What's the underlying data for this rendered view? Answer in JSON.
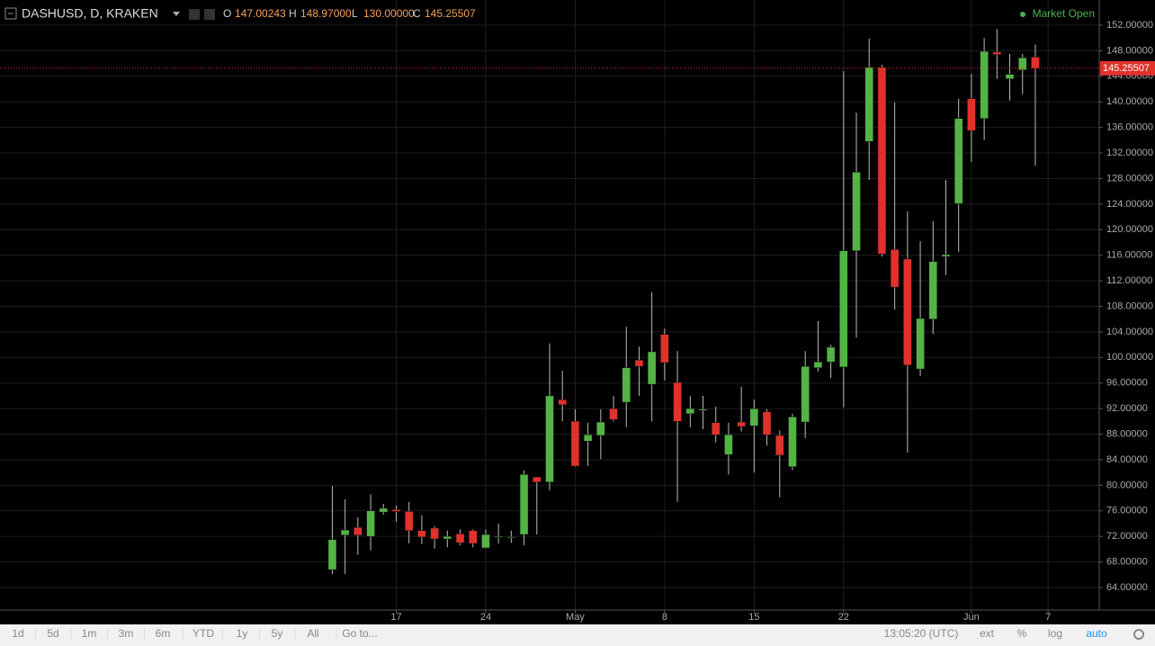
{
  "chart_data": {
    "type": "candlestick",
    "title": "DASHUSD, D, KRAKEN",
    "status": "Market Open",
    "legend": [
      {
        "label": "O",
        "value": "147.00243"
      },
      {
        "label": "H",
        "value": "148.97000"
      },
      {
        "label": "L",
        "value": "130.00000"
      },
      {
        "label": "C",
        "value": "145.25507"
      }
    ],
    "x": [
      "04-12",
      "04-13",
      "04-14",
      "04-15",
      "04-16",
      "04-17",
      "04-18",
      "04-19",
      "04-20",
      "04-21",
      "04-22",
      "04-23",
      "04-24",
      "04-25",
      "04-26",
      "04-27",
      "04-28",
      "04-29",
      "04-30",
      "05-01",
      "05-02",
      "05-03",
      "05-04",
      "05-05",
      "05-06",
      "05-07",
      "05-08",
      "05-09",
      "05-10",
      "05-11",
      "05-12",
      "05-13",
      "05-14",
      "05-15",
      "05-16",
      "05-17",
      "05-18",
      "05-19",
      "05-20",
      "05-21",
      "05-22",
      "05-23",
      "05-24",
      "05-25",
      "05-26",
      "05-27",
      "05-28",
      "05-29",
      "05-30",
      "05-31",
      "06-01",
      "06-02",
      "06-03",
      "06-04",
      "06-05",
      "06-06"
    ],
    "open": [
      66.8,
      72.2,
      73.4,
      72.0,
      75.8,
      76.2,
      75.9,
      72.9,
      73.3,
      71.6,
      72.4,
      72.9,
      70.2,
      71.9,
      71.8,
      72.3,
      81.3,
      80.5,
      93.4,
      90.0,
      86.9,
      87.8,
      92.0,
      93.0,
      99.6,
      95.8,
      103.6,
      96.1,
      91.2,
      91.7,
      89.8,
      84.8,
      89.9,
      89.3,
      91.5,
      87.8,
      82.9,
      89.9,
      98.4,
      99.3,
      98.5,
      116.7,
      133.8,
      145.4,
      116.9,
      115.4,
      98.2,
      106.0,
      115.8,
      124.1,
      140.5,
      137.4,
      147.8,
      143.6,
      145.0,
      147.00243
    ],
    "high": [
      79.9,
      77.8,
      75.0,
      78.6,
      77.1,
      76.8,
      77.4,
      75.3,
      73.6,
      72.9,
      73.1,
      73.1,
      73.1,
      74.0,
      72.9,
      82.3,
      81.3,
      102.2,
      97.9,
      91.9,
      89.8,
      91.9,
      94.0,
      104.8,
      101.7,
      110.2,
      104.5,
      101.0,
      94.0,
      94.0,
      92.3,
      89.8,
      95.4,
      93.4,
      91.9,
      88.6,
      91.2,
      101.0,
      105.7,
      102.0,
      144.8,
      138.3,
      149.9,
      145.8,
      139.9,
      122.9,
      118.2,
      121.3,
      127.8,
      140.5,
      144.4,
      150.0,
      151.4,
      147.5,
      147.5,
      148.97
    ],
    "low": [
      66.1,
      66.1,
      69.1,
      69.8,
      75.4,
      74.3,
      70.9,
      70.8,
      70.1,
      70.3,
      70.6,
      70.3,
      70.1,
      70.9,
      71.0,
      70.6,
      72.3,
      79.2,
      90.0,
      82.9,
      83.0,
      84.1,
      90.0,
      89.1,
      94.0,
      90.0,
      96.4,
      77.4,
      89.1,
      88.8,
      86.7,
      81.7,
      88.4,
      82.0,
      86.2,
      78.1,
      82.4,
      87.4,
      97.8,
      96.8,
      92.2,
      103.1,
      127.8,
      115.8,
      107.5,
      85.1,
      97.1,
      103.7,
      112.9,
      116.5,
      130.6,
      134.0,
      143.6,
      140.2,
      141.2,
      130
    ],
    "close": [
      71.5,
      73.0,
      72.2,
      76.0,
      76.4,
      75.9,
      72.9,
      71.9,
      71.6,
      72.0,
      71.0,
      70.9,
      72.3,
      72.0,
      71.9,
      81.7,
      80.5,
      94.0,
      92.6,
      83.0,
      87.9,
      89.9,
      90.3,
      98.4,
      98.6,
      100.9,
      99.2,
      90.0,
      92.0,
      91.9,
      87.9,
      87.9,
      89.2,
      92.0,
      87.9,
      84.7,
      90.7,
      98.6,
      99.3,
      101.6,
      116.7,
      129.0,
      145.4,
      116.2,
      111.0,
      98.8,
      106.1,
      115.0,
      116.1,
      137.4,
      135.5,
      147.9,
      147.4,
      144.3,
      146.9,
      145.25507
    ],
    "up_color": "#53b445",
    "down_color": "#e0312b",
    "xlim": [
      "03-17",
      "06-11"
    ],
    "xticks": [
      {
        "value": "04-17",
        "label": "17"
      },
      {
        "value": "04-24",
        "label": "24"
      },
      {
        "value": "05-01",
        "label": "May"
      },
      {
        "value": "05-08",
        "label": "8"
      },
      {
        "value": "05-15",
        "label": "15"
      },
      {
        "value": "05-22",
        "label": "22"
      },
      {
        "value": "06-01",
        "label": "Jun"
      },
      {
        "value": "06-07",
        "label": "7"
      }
    ],
    "ylim": [
      60.48,
      155.94
    ],
    "yticks": [
      {
        "value": 64,
        "label": "64.00000"
      },
      {
        "value": 68,
        "label": "68.00000"
      },
      {
        "value": 72,
        "label": "72.00000"
      },
      {
        "value": 76,
        "label": "76.00000"
      },
      {
        "value": 80,
        "label": "80.00000"
      },
      {
        "value": 84,
        "label": "84.00000"
      },
      {
        "value": 88,
        "label": "88.00000"
      },
      {
        "value": 92,
        "label": "92.00000"
      },
      {
        "value": 96,
        "label": "96.00000"
      },
      {
        "value": 100,
        "label": "100.00000"
      },
      {
        "value": 104,
        "label": "104.00000"
      },
      {
        "value": 108,
        "label": "108.00000"
      },
      {
        "value": 112,
        "label": "112.00000"
      },
      {
        "value": 116,
        "label": "116.00000"
      },
      {
        "value": 120,
        "label": "120.00000"
      },
      {
        "value": 124,
        "label": "124.00000"
      },
      {
        "value": 128,
        "label": "128.00000"
      },
      {
        "value": 132,
        "label": "132.00000"
      },
      {
        "value": 136,
        "label": "136.00000"
      },
      {
        "value": 140,
        "label": "140.00000"
      },
      {
        "value": 144,
        "label": "144.00000"
      },
      {
        "value": 148,
        "label": "148.00000"
      },
      {
        "value": 152,
        "label": "152.00000"
      }
    ],
    "grid": true,
    "toolbar": [
      "1d",
      "5d",
      "1m",
      "3m",
      "6m",
      "YTD",
      "1y",
      "5y",
      "All",
      "Go to..."
    ],
    "toolbar_right": [
      "13:05:20 (UTC)",
      "ext",
      "%",
      "log",
      "auto"
    ]
  }
}
